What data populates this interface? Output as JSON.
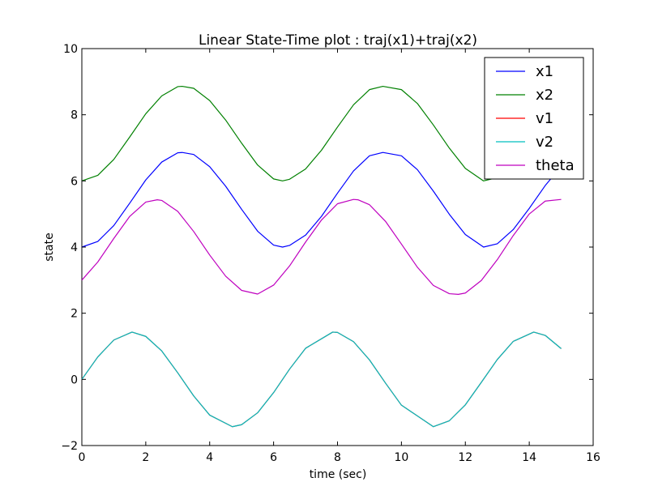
{
  "chart_data": {
    "type": "line",
    "title": "Linear State-Time plot : traj(x1)+traj(x2)",
    "xlabel": "time (sec)",
    "ylabel": "state",
    "xlim": [
      0,
      16
    ],
    "ylim": [
      -2,
      10
    ],
    "grid": false,
    "legend_position": "top-right",
    "x_ticks": [
      0,
      2,
      4,
      6,
      8,
      10,
      12,
      14,
      16
    ],
    "y_ticks": [
      -2,
      0,
      2,
      4,
      6,
      8,
      10
    ],
    "x_tick_labels": [
      "0",
      "2",
      "4",
      "6",
      "8",
      "10",
      "12",
      "14",
      "16"
    ],
    "y_tick_labels": [
      "−2",
      "0",
      "2",
      "4",
      "6",
      "8",
      "10"
    ],
    "series": [
      {
        "name": "x1",
        "color": "#0000ff",
        "x": [
          0,
          0.5,
          1,
          1.5,
          2,
          2.5,
          3,
          3.14,
          3.5,
          4,
          4.5,
          5,
          5.5,
          6,
          6.28,
          6.5,
          7,
          7.5,
          8,
          8.5,
          9,
          9.42,
          10,
          10.5,
          11,
          11.5,
          12,
          12.57,
          13,
          13.5,
          14,
          14.5,
          15
        ],
        "y": [
          4.0,
          4.17,
          4.65,
          5.33,
          6.03,
          6.57,
          6.85,
          6.86,
          6.8,
          6.43,
          5.84,
          5.14,
          4.48,
          4.06,
          4.0,
          4.05,
          4.36,
          4.93,
          5.63,
          6.3,
          6.76,
          6.86,
          6.76,
          6.34,
          5.69,
          4.99,
          4.38,
          4.0,
          4.1,
          4.53,
          5.17,
          5.86,
          6.44
        ]
      },
      {
        "name": "x2",
        "color": "#008000",
        "x": [
          0,
          0.5,
          1,
          1.5,
          2,
          2.5,
          3,
          3.14,
          3.5,
          4,
          4.5,
          5,
          5.5,
          6,
          6.28,
          6.5,
          7,
          7.5,
          8,
          8.5,
          9,
          9.42,
          10,
          10.5,
          11,
          11.5,
          12,
          12.57,
          13,
          13.5,
          14,
          14.5,
          15
        ],
        "y": [
          6.0,
          6.17,
          6.65,
          7.33,
          8.03,
          8.57,
          8.85,
          8.86,
          8.8,
          8.43,
          7.84,
          7.14,
          6.48,
          6.06,
          6.0,
          6.05,
          6.36,
          6.93,
          7.63,
          8.3,
          8.76,
          8.86,
          8.76,
          8.34,
          7.69,
          6.99,
          6.38,
          6.0,
          6.1,
          6.53,
          7.17,
          7.86,
          8.44
        ]
      },
      {
        "name": "v1",
        "color": "#ff0000",
        "x": [
          0,
          0.5,
          1,
          1.57,
          2,
          2.5,
          3,
          3.5,
          4,
          4.71,
          5,
          5.5,
          6,
          6.5,
          7,
          7.85,
          8,
          8.5,
          9,
          9.5,
          10,
          11.0,
          11.5,
          12,
          12.5,
          13,
          13.5,
          14.14,
          14.5,
          15
        ],
        "y": [
          0.0,
          0.68,
          1.19,
          1.43,
          1.3,
          0.86,
          0.2,
          -0.5,
          -1.08,
          -1.43,
          -1.37,
          -1.01,
          -0.4,
          0.31,
          0.94,
          1.43,
          1.42,
          1.14,
          0.59,
          -0.11,
          -0.78,
          -1.43,
          -1.25,
          -0.77,
          -0.09,
          0.6,
          1.15,
          1.43,
          1.33,
          0.93
        ]
      },
      {
        "name": "v2",
        "color": "#00bfbf",
        "x": [
          0,
          0.5,
          1,
          1.57,
          2,
          2.5,
          3,
          3.5,
          4,
          4.71,
          5,
          5.5,
          6,
          6.5,
          7,
          7.85,
          8,
          8.5,
          9,
          9.5,
          10,
          11.0,
          11.5,
          12,
          12.5,
          13,
          13.5,
          14.14,
          14.5,
          15
        ],
        "y": [
          0.0,
          0.68,
          1.19,
          1.43,
          1.3,
          0.86,
          0.2,
          -0.5,
          -1.08,
          -1.43,
          -1.37,
          -1.01,
          -0.4,
          0.31,
          0.94,
          1.43,
          1.42,
          1.14,
          0.59,
          -0.11,
          -0.78,
          -1.43,
          -1.25,
          -0.77,
          -0.09,
          0.6,
          1.15,
          1.43,
          1.33,
          0.93
        ]
      },
      {
        "name": "theta",
        "color": "#bf00bf",
        "x": [
          0,
          0.5,
          1,
          1.5,
          2,
          2.36,
          2.5,
          3,
          3.5,
          4,
          4.5,
          5,
          5.5,
          6,
          6.5,
          7,
          7.5,
          8,
          8.5,
          8.64,
          9,
          9.5,
          10,
          10.5,
          11,
          11.5,
          11.78,
          12,
          12.5,
          13,
          13.5,
          14,
          14.5,
          15
        ],
        "y": [
          3.0,
          3.55,
          4.26,
          4.93,
          5.36,
          5.43,
          5.41,
          5.08,
          4.47,
          3.76,
          3.12,
          2.69,
          2.58,
          2.85,
          3.43,
          4.15,
          4.82,
          5.31,
          5.44,
          5.43,
          5.28,
          4.78,
          4.09,
          3.39,
          2.84,
          2.59,
          2.57,
          2.61,
          2.99,
          3.62,
          4.35,
          5.0,
          5.39,
          5.44
        ]
      }
    ]
  }
}
